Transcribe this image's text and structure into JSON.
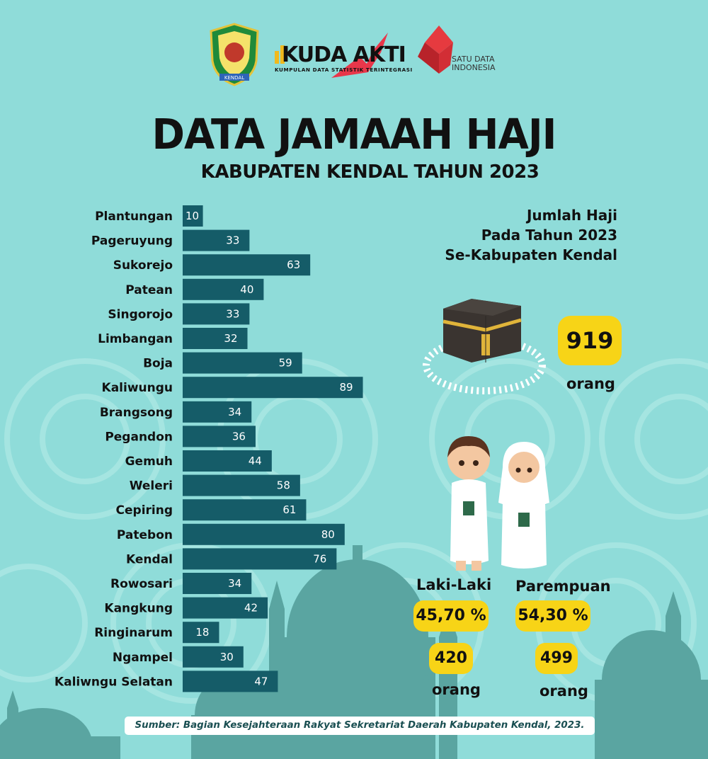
{
  "header": {
    "logo_kendal_text": "KENDAL",
    "logo_kuda_name": "KUDA AKTI",
    "logo_kuda_tagline": "KUMPULAN DATA STATISTIK TERINTEGRASI",
    "logo_satu_data": "SATU DATA INDONESIA"
  },
  "title": "DATA JAMAAH HAJI",
  "subtitle": "KABUPATEN KENDAL TAHUN 2023",
  "summary": {
    "heading_line1": "Jumlah Haji",
    "heading_line2": "Pada Tahun 2023",
    "heading_line3": "Se-Kabupaten Kendal",
    "total": "919",
    "total_unit": "orang",
    "male_label": "Laki-Laki",
    "male_percent": "45,70 %",
    "male_count": "420",
    "male_unit": "orang",
    "female_label": "Parempuan",
    "female_percent": "54,30 %",
    "female_count": "499",
    "female_unit": "orang"
  },
  "source": "Sumber: Bagian Kesejahteraan Rakyat Sekretariat Daerah Kabupaten Kendal, 2023.",
  "colors": {
    "background": "#8fdcd9",
    "bar": "#155c68",
    "pill": "#f7d417",
    "silhouette": "#5aa5a1"
  },
  "chart_data": {
    "type": "bar",
    "orientation": "horizontal",
    "categories": [
      "Plantungan",
      "Pageruyung",
      "Sukorejo",
      "Patean",
      "Singorojo",
      "Limbangan",
      "Boja",
      "Kaliwungu",
      "Brangsong",
      "Pegandon",
      "Gemuh",
      "Weleri",
      "Cepiring",
      "Patebon",
      "Kendal",
      "Rowosari",
      "Kangkung",
      "Ringinarum",
      "Ngampel",
      "Kaliwngu Selatan"
    ],
    "values": [
      10,
      33,
      63,
      40,
      33,
      32,
      59,
      89,
      34,
      36,
      44,
      58,
      61,
      80,
      76,
      34,
      42,
      18,
      30,
      47
    ],
    "data_labels": true,
    "grid": false,
    "legend": "none"
  }
}
